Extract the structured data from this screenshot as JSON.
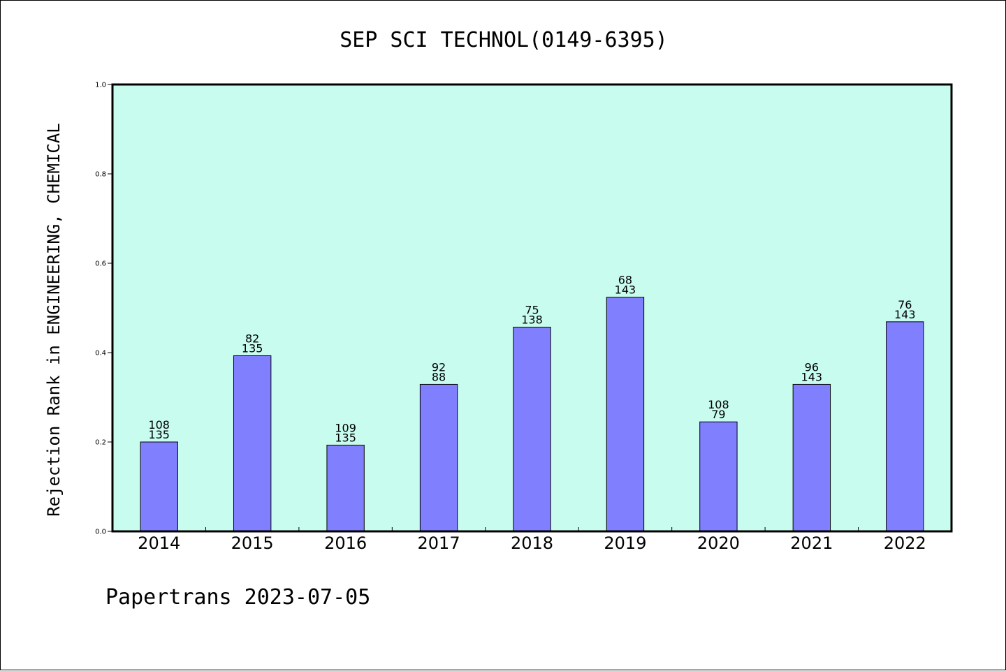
{
  "chart_data": {
    "type": "bar",
    "title": "SEP SCI TECHNOL(0149-6395)",
    "xlabel": "",
    "ylabel": "Rejection Rank in ENGINEERING, CHEMICAL",
    "categories": [
      "2014",
      "2015",
      "2016",
      "2017",
      "2018",
      "2019",
      "2020",
      "2021",
      "2022"
    ],
    "values": [
      0.2,
      0.393,
      0.193,
      0.329,
      0.457,
      0.524,
      0.245,
      0.329,
      0.469
    ],
    "labels_top": [
      "108",
      "82",
      "109",
      "92",
      "75",
      "68",
      "108",
      "96",
      "76"
    ],
    "labels_bottom": [
      "135",
      "135",
      "135",
      "88",
      "138",
      "143",
      "79",
      "143",
      "143"
    ],
    "ylim": [
      0,
      1.0
    ],
    "yticks": [
      "0.0",
      "0.2",
      "0.4",
      "0.6",
      "0.8",
      "1.0"
    ],
    "grid": false,
    "colors": {
      "plot_background": "#c8fcee",
      "bar_fill": "#8080ff",
      "bar_stroke": "#000000"
    }
  },
  "footer": "Papertrans 2023-07-05"
}
